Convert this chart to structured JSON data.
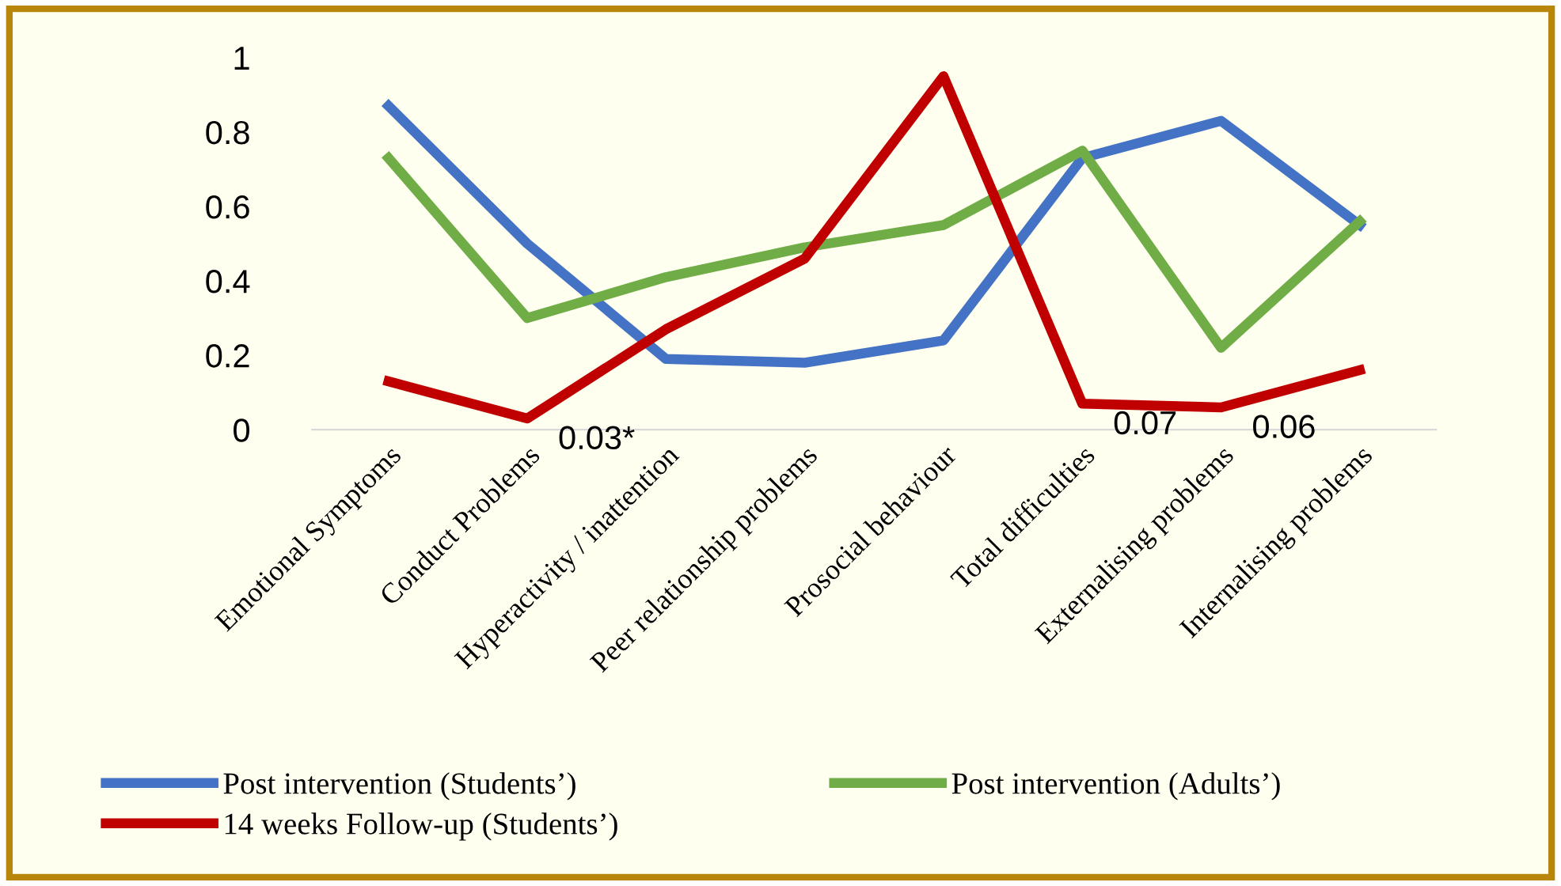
{
  "chart_data": {
    "type": "line",
    "categories": [
      "Emotional Symptoms",
      "Conduct Problems",
      "Hyperactivity / inattention",
      "Peer relationship problems",
      "Prosocial behaviour",
      "Total difficulties",
      "Externalising problems",
      "Internalising problems"
    ],
    "series": [
      {
        "name": "Post intervention (Students’)",
        "color": "#4472c4",
        "values": [
          0.87,
          0.5,
          0.19,
          0.18,
          0.24,
          0.73,
          0.83,
          0.55
        ]
      },
      {
        "name": "Post intervention (Adults’)",
        "color": "#70ad47",
        "values": [
          0.73,
          0.3,
          0.41,
          0.49,
          0.55,
          0.75,
          0.22,
          0.56
        ]
      },
      {
        "name": "14 weeks Follow-up (Students’)",
        "color": "#c00000",
        "values": [
          0.13,
          0.03,
          0.27,
          0.46,
          0.95,
          0.07,
          0.06,
          0.16
        ]
      }
    ],
    "annotations": [
      {
        "text": "0.03*",
        "x": "Conduct Problems",
        "y": 0.03
      },
      {
        "text": "0.07",
        "x": "Total difficulties",
        "y": 0.07
      },
      {
        "text": "0.06",
        "x": "Externalising problems",
        "y": 0.06
      }
    ],
    "ylim": [
      0,
      1
    ],
    "yticks": [
      0,
      0.2,
      0.4,
      0.6,
      0.8,
      1
    ],
    "grid": false,
    "legend": "bottom",
    "marker": "none",
    "line_style": "solid"
  }
}
